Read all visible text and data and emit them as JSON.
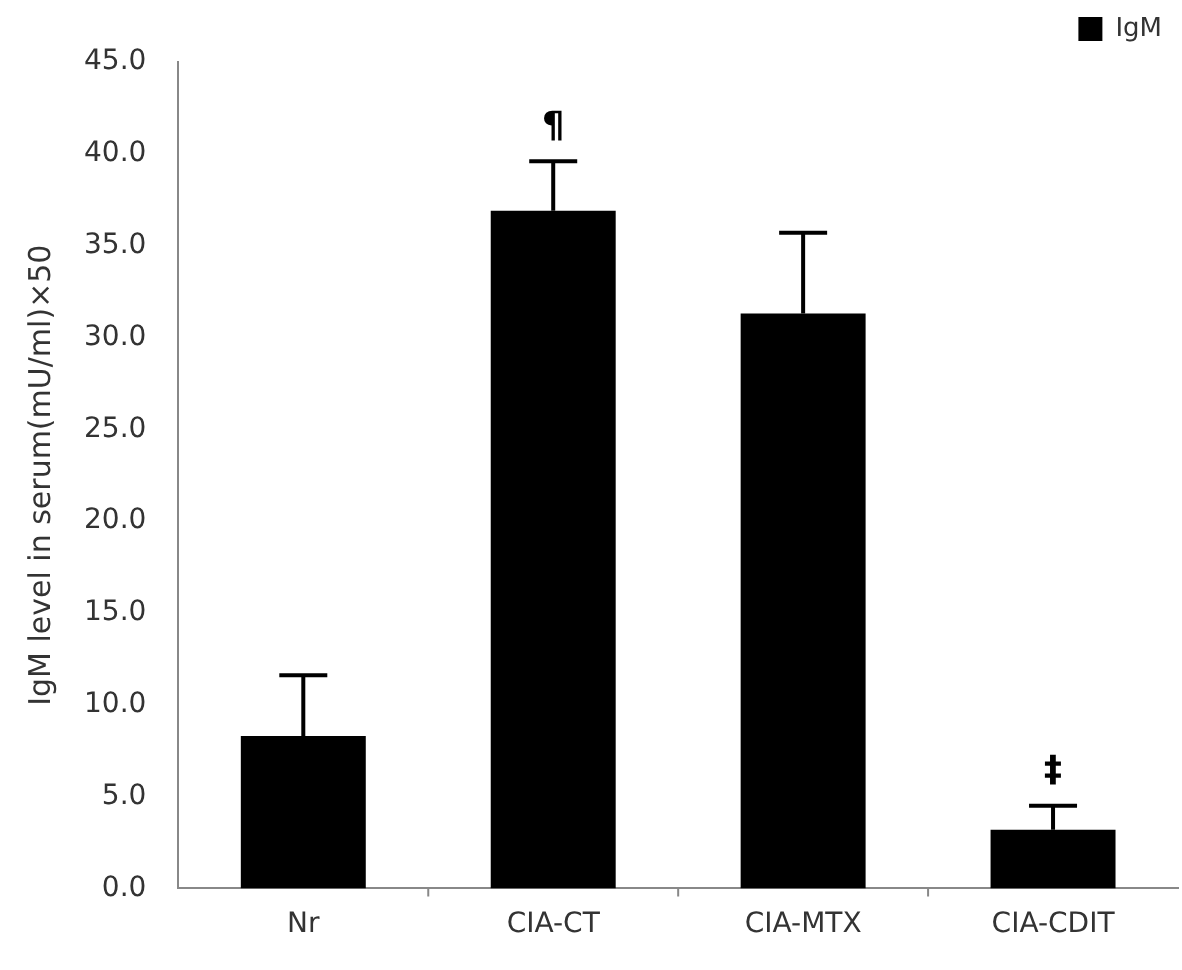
{
  "chart_data": {
    "type": "bar",
    "ylabel": "IgM level in serum(mU/ml)×50",
    "categories": [
      "Nr",
      "CIA-CT",
      "CIA-MTX",
      "CIA-CDIT"
    ],
    "series": [
      {
        "name": "IgM",
        "color": "#000000",
        "values": [
          8.3,
          36.9,
          31.3,
          3.2
        ],
        "errors": [
          [
            8.3,
            11.6
          ],
          [
            36.9,
            39.6
          ],
          [
            31.3,
            35.7
          ],
          [
            3.2,
            4.5
          ]
        ]
      }
    ],
    "ylim": [
      0,
      45
    ],
    "yticks": [
      {
        "value": 0,
        "label": "0.0"
      },
      {
        "value": 5,
        "label": "5.0"
      },
      {
        "value": 10,
        "label": "10.0"
      },
      {
        "value": 15,
        "label": "15.0"
      },
      {
        "value": 20,
        "label": "20.0"
      },
      {
        "value": 25,
        "label": "25.0"
      },
      {
        "value": 30,
        "label": "30.0"
      },
      {
        "value": 35,
        "label": "35.0"
      },
      {
        "value": 40,
        "label": "40.0"
      },
      {
        "value": 45,
        "label": "45.0"
      }
    ],
    "annotations": [
      {
        "text": "¶",
        "x": "CIA-CT",
        "y": 39.6
      },
      {
        "text": "‡",
        "x": "CIA-CDIT",
        "y": 4.5
      }
    ],
    "grid": false,
    "legend": "top right"
  }
}
